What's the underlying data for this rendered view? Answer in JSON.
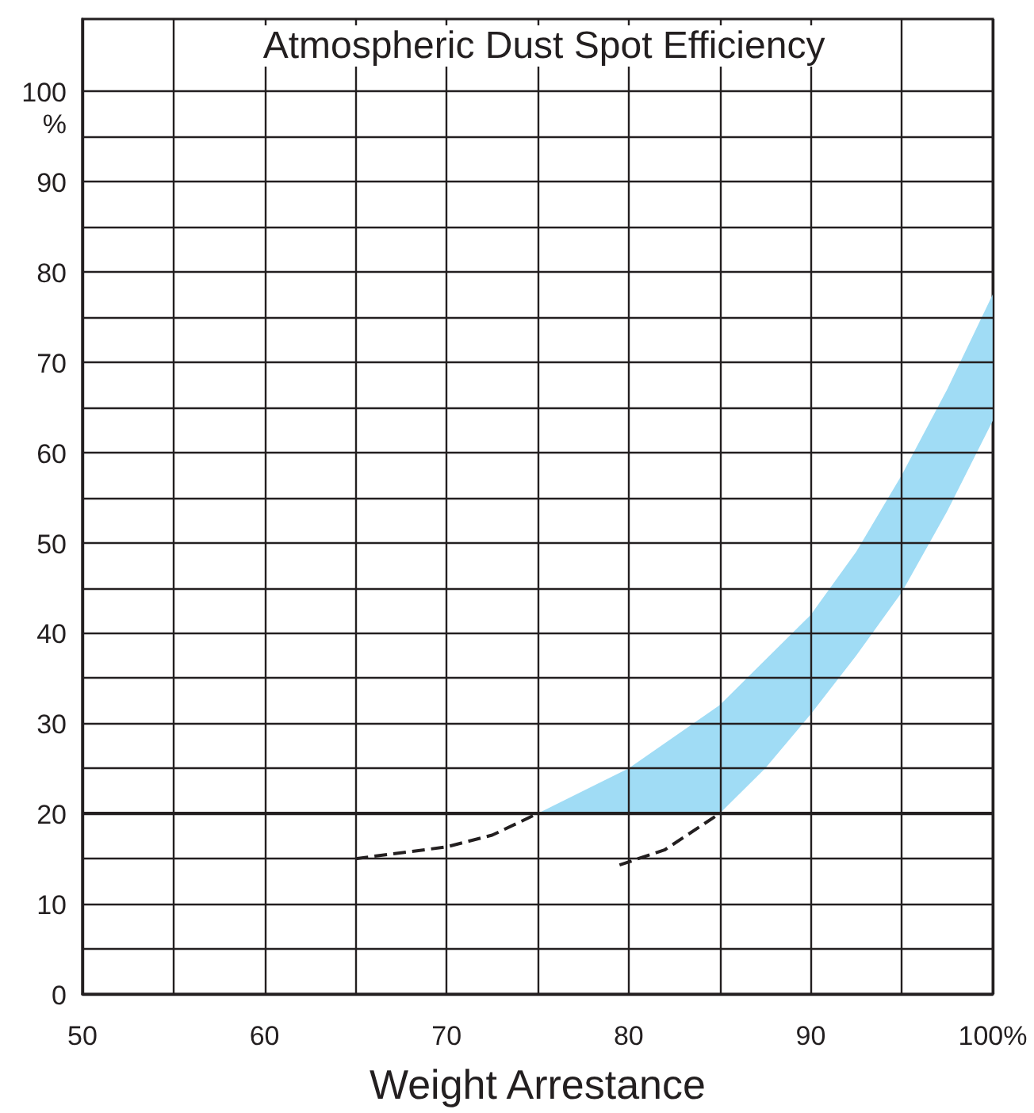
{
  "chart_data": {
    "type": "line",
    "title": "Atmospheric Dust Spot Efficiency",
    "xlabel": "Weight Arrestance",
    "xlim": [
      50,
      100
    ],
    "ylim": [
      0,
      108
    ],
    "xticks": [
      50,
      {
        "value": 55,
        "label": null
      },
      60,
      {
        "value": 65,
        "label": null
      },
      70,
      {
        "value": 75,
        "label": null
      },
      80,
      {
        "value": 85,
        "label": null
      },
      90,
      {
        "value": 95,
        "label": null
      },
      {
        "value": 100,
        "label": "100%"
      }
    ],
    "yticks": [
      0,
      {
        "value": 5,
        "label": null
      },
      10,
      {
        "value": 15,
        "label": null
      },
      20,
      {
        "value": 25,
        "label": null
      },
      30,
      {
        "value": 35,
        "label": null
      },
      40,
      {
        "value": 45,
        "label": null
      },
      50,
      {
        "value": 55,
        "label": null
      },
      60,
      {
        "value": 65,
        "label": null
      },
      70,
      {
        "value": 75,
        "label": null
      },
      80,
      {
        "value": 85,
        "label": null
      },
      90,
      {
        "value": 95,
        "label": null
      },
      {
        "value": 100,
        "label": "100\n%"
      }
    ],
    "grid": true,
    "series": [
      {
        "type": "area",
        "color": "#a0dcf5",
        "x": [
          75,
          80,
          85,
          87.5,
          90,
          92.5,
          95,
          97.5,
          100
        ],
        "values": [
          null,
          null,
          null,
          null,
          null,
          null,
          null,
          null,
          null
        ],
        "upper": [
          20,
          25,
          32,
          37,
          42,
          49,
          57.5,
          67,
          77.5
        ],
        "lower": [
          20,
          20,
          20,
          25,
          31,
          37.5,
          44.5,
          53.5,
          63.5
        ]
      },
      {
        "type": "line",
        "color": "#231f20",
        "line_style": "dashed",
        "marker": "none",
        "x": [
          65,
          70,
          72.5,
          75
        ],
        "values": [
          15,
          16.3,
          17.6,
          20
        ]
      },
      {
        "type": "line",
        "color": "#231f20",
        "line_style": "dashed",
        "marker": "none",
        "x": [
          79.5,
          82,
          85
        ],
        "values": [
          14.3,
          16,
          20
        ]
      }
    ],
    "ref_lines": [
      {
        "axis": "y",
        "value": 20,
        "color": "#231f20"
      }
    ]
  }
}
